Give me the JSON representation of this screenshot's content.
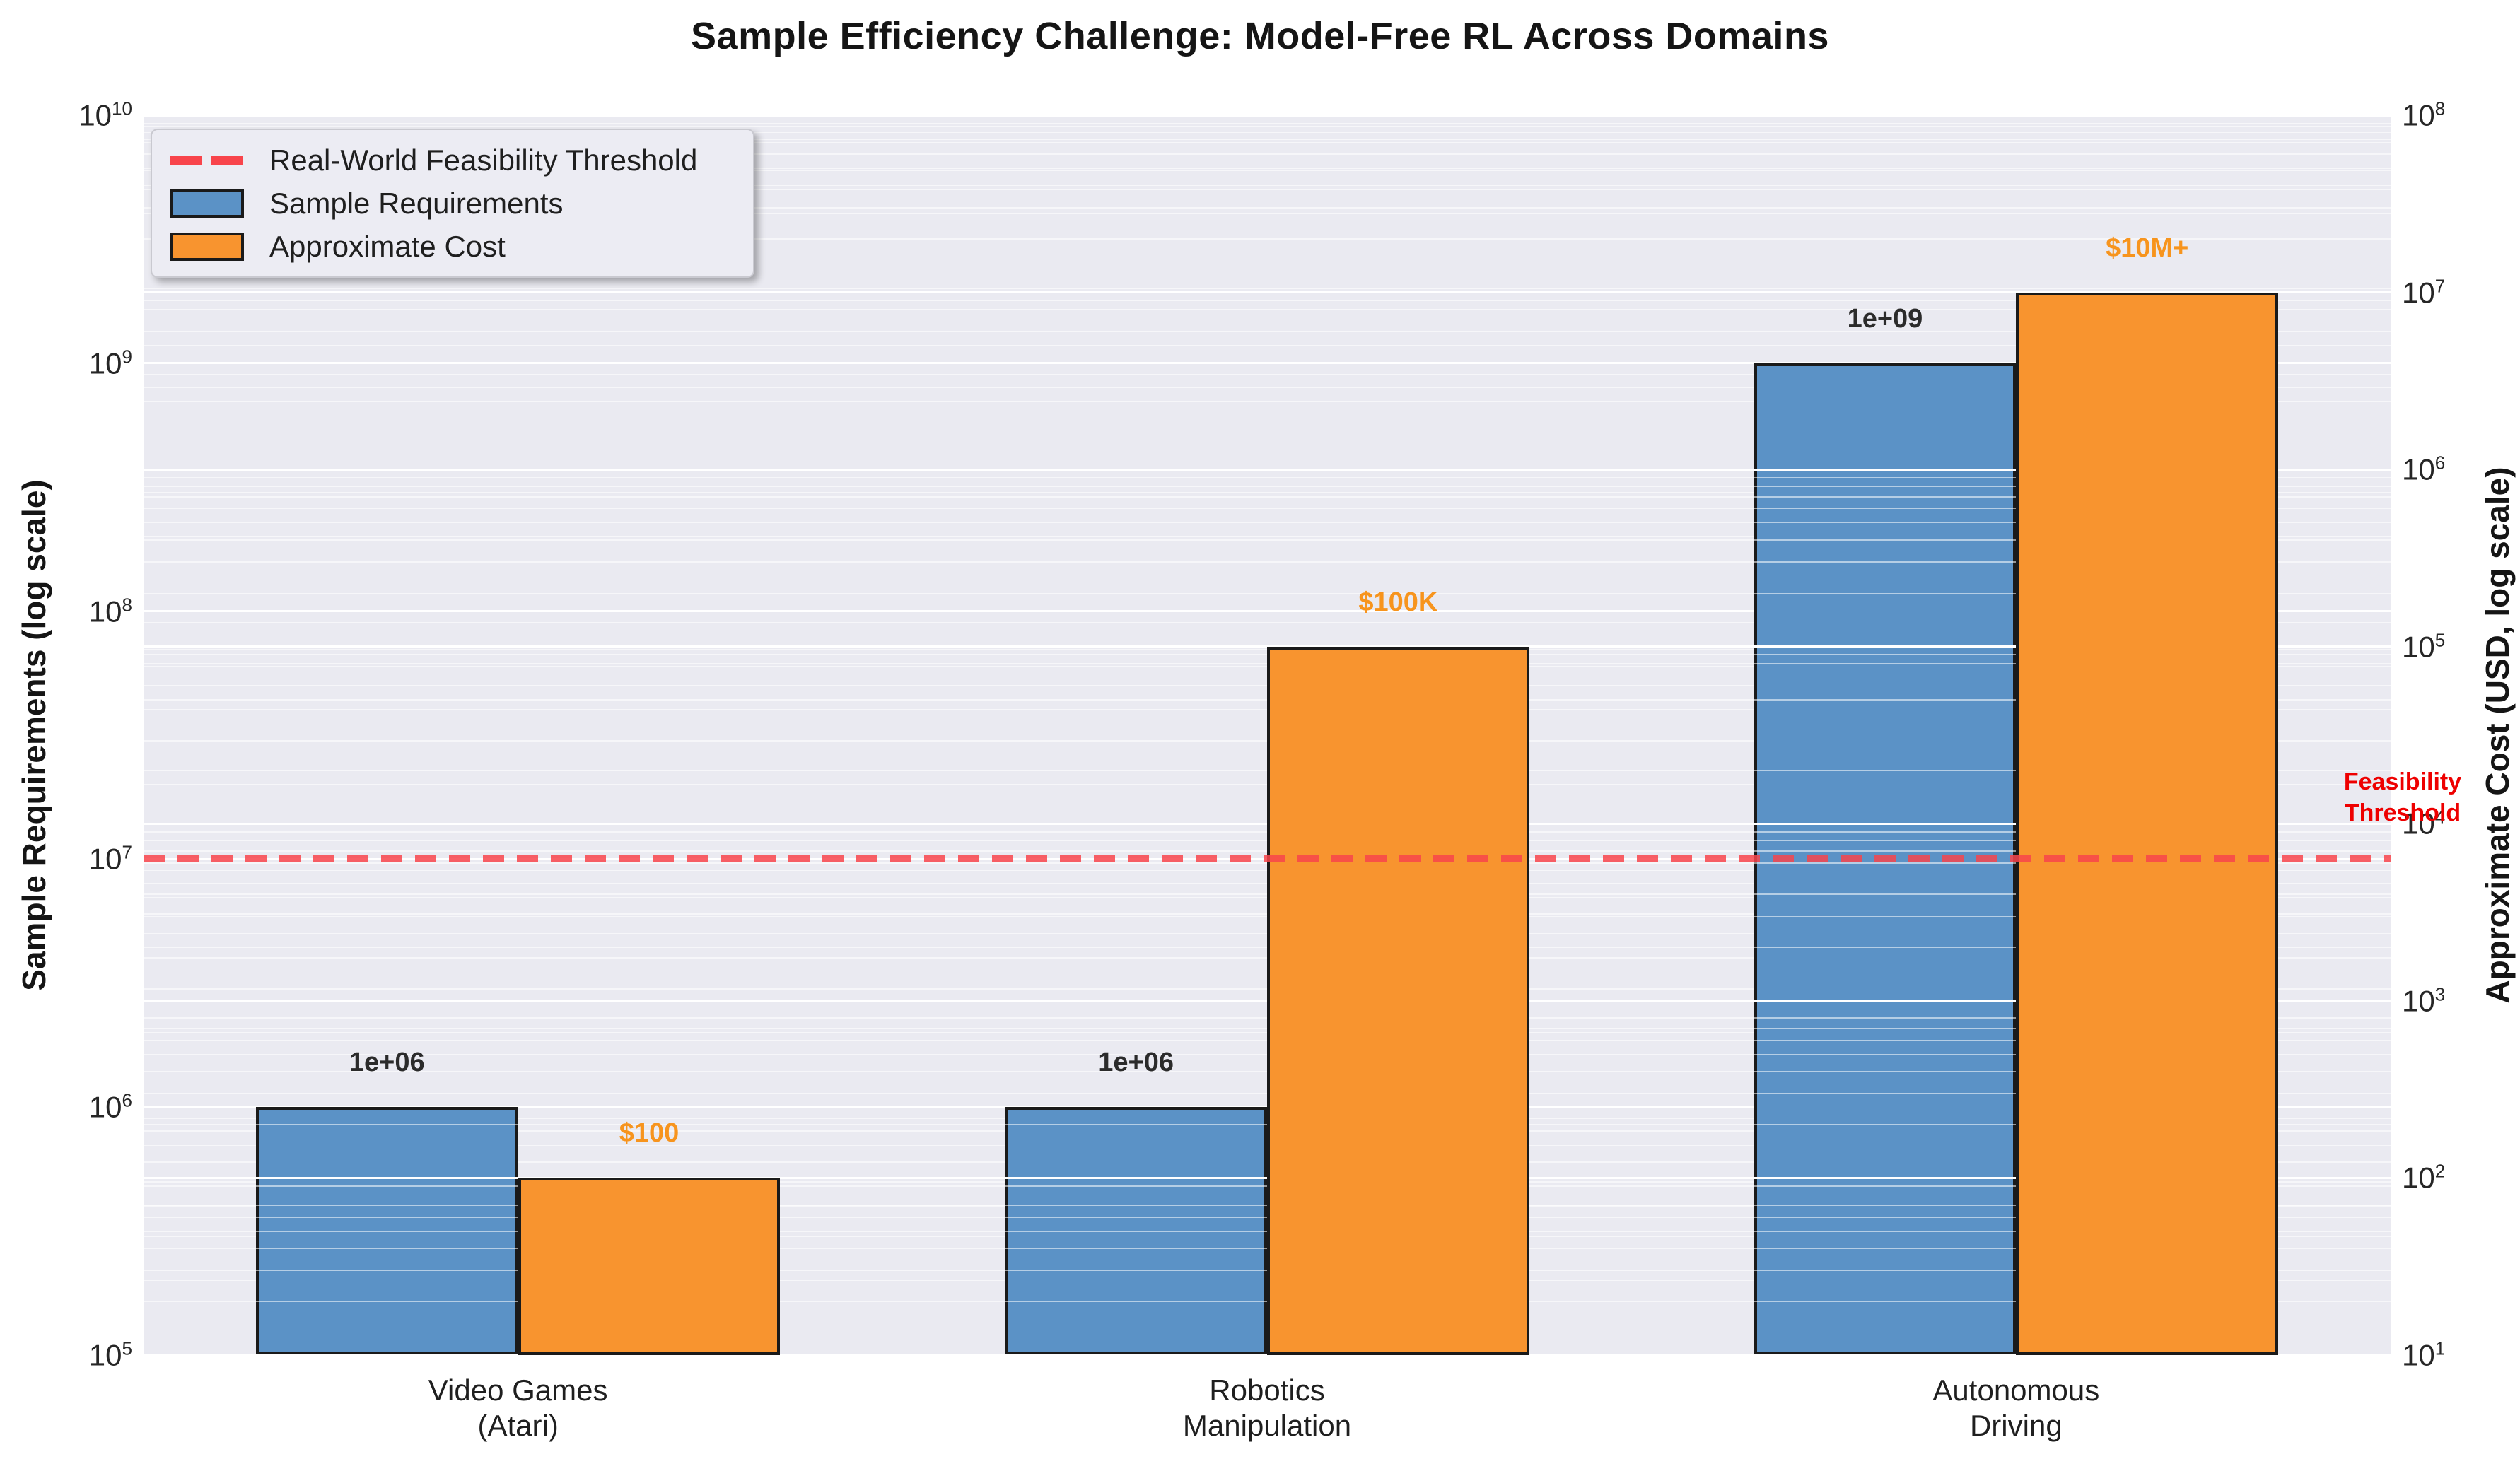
{
  "chart_data": {
    "type": "bar",
    "title": "Sample Efficiency Challenge: Model-Free RL Across Domains",
    "categories": [
      {
        "lines": [
          "Video Games",
          "(Atari)"
        ]
      },
      {
        "lines": [
          "Robotics",
          "Manipulation"
        ]
      },
      {
        "lines": [
          "Autonomous",
          "Driving"
        ]
      }
    ],
    "series": [
      {
        "name": "Sample Requirements",
        "axis": "left",
        "color": "#5B92C6",
        "values": [
          1000000,
          1000000,
          1000000000
        ],
        "bar_labels": [
          "1e+06",
          "1e+06",
          "1e+09"
        ],
        "bar_label_color": "#2B2B2B"
      },
      {
        "name": "Approximate Cost",
        "axis": "right",
        "color": "#F8942F",
        "values": [
          100,
          100000,
          10000000
        ],
        "bar_labels": [
          "$100",
          "$100K",
          "$10M+"
        ],
        "bar_label_color": "#F7941D"
      }
    ],
    "axes": {
      "left": {
        "label": "Sample Requirements (log scale)",
        "scale": "log",
        "lim": [
          100000,
          10000000000
        ],
        "tick_exponents": [
          10,
          9,
          8,
          7,
          6,
          5
        ]
      },
      "right": {
        "label": "Approximate Cost (USD, log scale)",
        "scale": "log",
        "lim": [
          10,
          100000000
        ],
        "tick_exponents": [
          8,
          7,
          6,
          5,
          4,
          3,
          2,
          1
        ]
      }
    },
    "threshold": {
      "value": 10000000,
      "axis": "left",
      "color": "#F8444B",
      "legend_label": "Real-World Feasibility Threshold"
    },
    "annotation": {
      "line1": "Feasibility",
      "line2": "Threshold",
      "color": "#EE0000"
    },
    "legend": {
      "position": "upper left",
      "items": [
        "Real-World Feasibility Threshold",
        "Sample Requirements",
        "Approximate Cost"
      ]
    },
    "grid": true,
    "plot_bg": "#EAEAF1",
    "bar_width_fraction": 0.35
  }
}
